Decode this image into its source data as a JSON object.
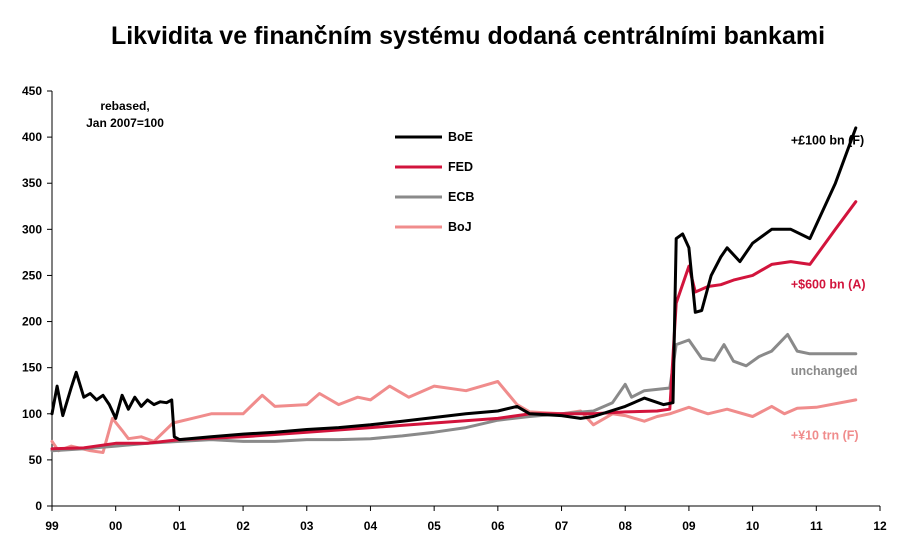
{
  "chart_data": {
    "type": "line",
    "title": "Likvidita ve finančním systému dodaná centrálními bankami",
    "note": "rebased,\nJan 2007=100",
    "xlim": [
      1999,
      2012
    ],
    "ylim": [
      0,
      450
    ],
    "x_ticks": [
      {
        "value": 1999,
        "label": "99"
      },
      {
        "value": 2000,
        "label": "00"
      },
      {
        "value": 2001,
        "label": "01"
      },
      {
        "value": 2002,
        "label": "02"
      },
      {
        "value": 2003,
        "label": "03"
      },
      {
        "value": 2004,
        "label": "04"
      },
      {
        "value": 2005,
        "label": "05"
      },
      {
        "value": 2006,
        "label": "06"
      },
      {
        "value": 2007,
        "label": "07"
      },
      {
        "value": 2008,
        "label": "08"
      },
      {
        "value": 2009,
        "label": "09"
      },
      {
        "value": 2010,
        "label": "10"
      },
      {
        "value": 2011,
        "label": "11"
      },
      {
        "value": 2012,
        "label": "12"
      }
    ],
    "y_ticks": [
      0,
      50,
      100,
      150,
      200,
      250,
      300,
      350,
      400,
      450
    ],
    "legend": {
      "placement": "top-center"
    },
    "series": [
      {
        "name": "BoE",
        "color": "#000000",
        "points": [
          [
            1999.0,
            100
          ],
          [
            1999.08,
            130
          ],
          [
            1999.17,
            98
          ],
          [
            1999.3,
            128
          ],
          [
            1999.38,
            145
          ],
          [
            1999.5,
            118
          ],
          [
            1999.6,
            122
          ],
          [
            1999.7,
            115
          ],
          [
            1999.8,
            120
          ],
          [
            1999.9,
            110
          ],
          [
            2000.0,
            95
          ],
          [
            2000.1,
            120
          ],
          [
            2000.2,
            105
          ],
          [
            2000.3,
            118
          ],
          [
            2000.4,
            108
          ],
          [
            2000.5,
            115
          ],
          [
            2000.6,
            110
          ],
          [
            2000.7,
            113
          ],
          [
            2000.8,
            112
          ],
          [
            2000.88,
            115
          ],
          [
            2000.92,
            75
          ],
          [
            2001.0,
            72
          ],
          [
            2001.5,
            75
          ],
          [
            2002.0,
            78
          ],
          [
            2002.5,
            80
          ],
          [
            2003.0,
            83
          ],
          [
            2003.5,
            85
          ],
          [
            2004.0,
            88
          ],
          [
            2004.5,
            92
          ],
          [
            2005.0,
            96
          ],
          [
            2005.5,
            100
          ],
          [
            2006.0,
            103
          ],
          [
            2006.3,
            108
          ],
          [
            2006.5,
            100
          ],
          [
            2007.0,
            98
          ],
          [
            2007.3,
            95
          ],
          [
            2007.5,
            97
          ],
          [
            2008.0,
            108
          ],
          [
            2008.3,
            117
          ],
          [
            2008.6,
            110
          ],
          [
            2008.75,
            112
          ],
          [
            2008.8,
            290
          ],
          [
            2008.9,
            295
          ],
          [
            2009.0,
            280
          ],
          [
            2009.1,
            210
          ],
          [
            2009.2,
            212
          ],
          [
            2009.35,
            250
          ],
          [
            2009.5,
            270
          ],
          [
            2009.6,
            280
          ],
          [
            2009.8,
            265
          ],
          [
            2010.0,
            285
          ],
          [
            2010.3,
            300
          ],
          [
            2010.6,
            300
          ],
          [
            2010.9,
            290
          ],
          [
            2011.3,
            350
          ],
          [
            2011.62,
            410
          ]
        ]
      },
      {
        "name": "FED",
        "color": "#d2143c",
        "points": [
          [
            1999.0,
            62
          ],
          [
            1999.5,
            63
          ],
          [
            2000.0,
            68
          ],
          [
            2000.5,
            68
          ],
          [
            2001.0,
            72
          ],
          [
            2002.0,
            75
          ],
          [
            2003.0,
            80
          ],
          [
            2004.0,
            85
          ],
          [
            2005.0,
            90
          ],
          [
            2006.0,
            95
          ],
          [
            2006.5,
            100
          ],
          [
            2007.0,
            100
          ],
          [
            2007.5,
            100
          ],
          [
            2008.0,
            102
          ],
          [
            2008.5,
            103
          ],
          [
            2008.7,
            105
          ],
          [
            2008.8,
            220
          ],
          [
            2009.0,
            260
          ],
          [
            2009.1,
            232
          ],
          [
            2009.3,
            238
          ],
          [
            2009.5,
            240
          ],
          [
            2009.7,
            245
          ],
          [
            2010.0,
            250
          ],
          [
            2010.3,
            262
          ],
          [
            2010.6,
            265
          ],
          [
            2010.9,
            262
          ],
          [
            2011.3,
            300
          ],
          [
            2011.62,
            330
          ]
        ]
      },
      {
        "name": "ECB",
        "color": "#8a8a8a",
        "points": [
          [
            1999.0,
            60
          ],
          [
            1999.5,
            62
          ],
          [
            2000.0,
            65
          ],
          [
            2000.5,
            68
          ],
          [
            2001.0,
            70
          ],
          [
            2001.5,
            72
          ],
          [
            2002.0,
            70
          ],
          [
            2002.5,
            70
          ],
          [
            2003.0,
            72
          ],
          [
            2003.5,
            72
          ],
          [
            2004.0,
            73
          ],
          [
            2004.5,
            76
          ],
          [
            2005.0,
            80
          ],
          [
            2005.5,
            85
          ],
          [
            2006.0,
            93
          ],
          [
            2006.5,
            97
          ],
          [
            2007.0,
            100
          ],
          [
            2007.5,
            103
          ],
          [
            2007.8,
            112
          ],
          [
            2008.0,
            132
          ],
          [
            2008.1,
            118
          ],
          [
            2008.3,
            125
          ],
          [
            2008.7,
            128
          ],
          [
            2008.8,
            175
          ],
          [
            2009.0,
            180
          ],
          [
            2009.2,
            160
          ],
          [
            2009.4,
            158
          ],
          [
            2009.55,
            175
          ],
          [
            2009.7,
            157
          ],
          [
            2009.9,
            152
          ],
          [
            2010.1,
            162
          ],
          [
            2010.3,
            168
          ],
          [
            2010.55,
            186
          ],
          [
            2010.7,
            168
          ],
          [
            2010.9,
            165
          ],
          [
            2011.62,
            165
          ]
        ]
      },
      {
        "name": "BoJ",
        "color": "#f08c8c",
        "points": [
          [
            1999.0,
            70
          ],
          [
            1999.1,
            60
          ],
          [
            1999.3,
            65
          ],
          [
            1999.6,
            60
          ],
          [
            1999.8,
            58
          ],
          [
            1999.95,
            95
          ],
          [
            2000.1,
            82
          ],
          [
            2000.2,
            73
          ],
          [
            2000.4,
            75
          ],
          [
            2000.6,
            70
          ],
          [
            2000.9,
            90
          ],
          [
            2001.2,
            95
          ],
          [
            2001.5,
            100
          ],
          [
            2002.0,
            100
          ],
          [
            2002.3,
            120
          ],
          [
            2002.5,
            108
          ],
          [
            2003.0,
            110
          ],
          [
            2003.2,
            122
          ],
          [
            2003.5,
            110
          ],
          [
            2003.8,
            118
          ],
          [
            2004.0,
            115
          ],
          [
            2004.3,
            130
          ],
          [
            2004.6,
            118
          ],
          [
            2005.0,
            130
          ],
          [
            2005.5,
            125
          ],
          [
            2006.0,
            135
          ],
          [
            2006.3,
            110
          ],
          [
            2006.5,
            102
          ],
          [
            2007.0,
            100
          ],
          [
            2007.3,
            103
          ],
          [
            2007.5,
            88
          ],
          [
            2007.8,
            100
          ],
          [
            2008.0,
            98
          ],
          [
            2008.3,
            92
          ],
          [
            2008.5,
            97
          ],
          [
            2008.7,
            100
          ],
          [
            2009.0,
            107
          ],
          [
            2009.3,
            100
          ],
          [
            2009.6,
            105
          ],
          [
            2010.0,
            97
          ],
          [
            2010.3,
            108
          ],
          [
            2010.5,
            100
          ],
          [
            2010.7,
            106
          ],
          [
            2011.0,
            107
          ],
          [
            2011.62,
            115
          ]
        ]
      }
    ],
    "annotations": [
      {
        "text": "+£100 bn (F)",
        "color": "#000000",
        "x": 2010.6,
        "y": 392
      },
      {
        "text": "+$600 bn (A)",
        "color": "#d2143c",
        "x": 2010.6,
        "y": 236
      },
      {
        "text": "unchanged",
        "color": "#8a8a8a",
        "x": 2010.6,
        "y": 142
      },
      {
        "text": "+¥10 trn (F)",
        "color": "#f08c8c",
        "x": 2010.6,
        "y": 72
      }
    ]
  }
}
